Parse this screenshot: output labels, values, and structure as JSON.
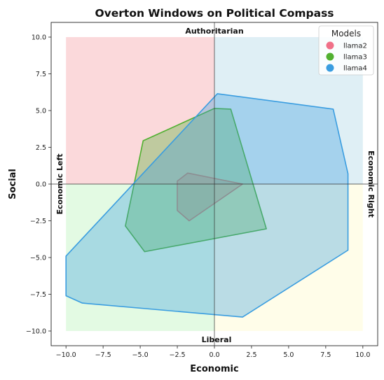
{
  "chart_data": {
    "type": "area",
    "title": "Overton Windows on Political Compass",
    "xlabel": "Economic",
    "ylabel": "Social",
    "xlim": [
      -11,
      11
    ],
    "ylim": [
      -11,
      11
    ],
    "xticks": [
      "−10.0",
      "−7.5",
      "−5.0",
      "−2.5",
      "0.0",
      "2.5",
      "5.0",
      "7.5",
      "10.0"
    ],
    "yticks": [
      "−10.0",
      "−7.5",
      "−5.0",
      "−2.5",
      "0.0",
      "2.5",
      "5.0",
      "7.5",
      "10.0"
    ],
    "xtick_values": [
      -10,
      -7.5,
      -5,
      -2.5,
      0,
      2.5,
      5,
      7.5,
      10
    ],
    "ytick_values": [
      -10,
      -7.5,
      -5,
      -2.5,
      0,
      2.5,
      5,
      7.5,
      10
    ],
    "grid": false,
    "quadrant_labels": {
      "top": "Authoritarian",
      "bottom": "Liberal",
      "left": "Economic Left",
      "right": "Economic Right"
    },
    "quadrants": [
      {
        "x": [
          -10,
          0
        ],
        "y": [
          0,
          10
        ],
        "color": "#f4a0a4"
      },
      {
        "x": [
          0,
          10
        ],
        "y": [
          0,
          10
        ],
        "color": "#aed6e6"
      },
      {
        "x": [
          -10,
          0
        ],
        "y": [
          -10,
          0
        ],
        "color": "#b8f2b8"
      },
      {
        "x": [
          0,
          10
        ],
        "y": [
          -10,
          0
        ],
        "color": "#fffac8"
      }
    ],
    "legend": {
      "title": "Models",
      "placement": "top-right"
    },
    "series": [
      {
        "name": "llama2",
        "color": "#f07088",
        "points": [
          [
            -1.8,
            0.75
          ],
          [
            1.9,
            0.0
          ],
          [
            -1.7,
            -2.5
          ],
          [
            -2.5,
            -1.8
          ],
          [
            -2.5,
            0.2
          ]
        ]
      },
      {
        "name": "llama3",
        "color": "#50b030",
        "points": [
          [
            -4.8,
            2.95
          ],
          [
            0.0,
            5.15
          ],
          [
            1.1,
            5.1
          ],
          [
            3.5,
            -3.05
          ],
          [
            -4.7,
            -4.6
          ],
          [
            -6.0,
            -2.85
          ]
        ]
      },
      {
        "name": "llama4",
        "color": "#3a9de0",
        "points": [
          [
            0.2,
            6.15
          ],
          [
            8.0,
            5.1
          ],
          [
            9.0,
            0.7
          ],
          [
            9.0,
            -4.5
          ],
          [
            1.9,
            -9.05
          ],
          [
            -8.9,
            -8.1
          ],
          [
            -10.0,
            -7.6
          ],
          [
            -10.0,
            -4.9
          ]
        ]
      }
    ]
  }
}
